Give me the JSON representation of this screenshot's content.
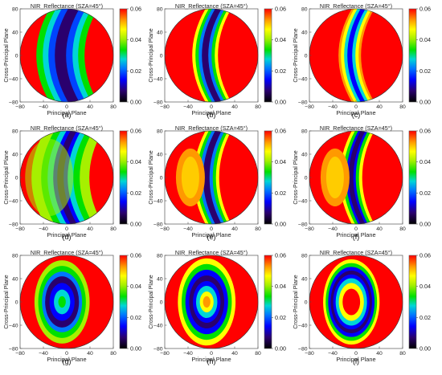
{
  "figure": {
    "panel_title": "NIR_Reflectance (SZA=45°)",
    "xlabel": "Principal Plane",
    "ylabel": "Cross-Principal Plane",
    "x_ticks": [
      "−80",
      "−40",
      "0",
      "40",
      "80"
    ],
    "y_ticks": [
      "80",
      "40",
      "0",
      "−40",
      "−80"
    ],
    "colorbar": {
      "range": [
        0.0,
        0.06
      ],
      "tick_labels": [
        "0.06",
        "0.04",
        "0.02",
        "0.00"
      ]
    }
  },
  "chart_data": [
    {
      "type": "heatmap",
      "panel": "(a)",
      "title": "NIR_Reflectance (SZA=45°)",
      "xlabel": "Principal Plane",
      "ylabel": "Cross-Principal Plane",
      "xlim": [
        -80,
        80
      ],
      "ylim": [
        -80,
        80
      ],
      "colorbar_range": [
        0.0,
        0.06
      ],
      "colorbar_ticks": [
        0.0,
        0.02,
        0.04,
        0.06
      ]
    },
    {
      "type": "heatmap",
      "panel": "(b)",
      "title": "NIR_Reflectance (SZA=45°)",
      "xlabel": "Principal Plane",
      "ylabel": "Cross-Principal Plane",
      "xlim": [
        -80,
        80
      ],
      "ylim": [
        -80,
        80
      ],
      "colorbar_range": [
        0.0,
        0.06
      ],
      "colorbar_ticks": [
        0.0,
        0.02,
        0.04,
        0.06
      ]
    },
    {
      "type": "heatmap",
      "panel": "(c)",
      "title": "NIR_Reflectance (SZA=45°)",
      "xlabel": "Principal Plane",
      "ylabel": "Cross-Principal Plane",
      "xlim": [
        -80,
        80
      ],
      "ylim": [
        -80,
        80
      ],
      "colorbar_range": [
        0.0,
        0.06
      ],
      "colorbar_ticks": [
        0.0,
        0.02,
        0.04,
        0.06
      ]
    },
    {
      "type": "heatmap",
      "panel": "(d)",
      "title": "NIR_Reflectance (SZA=45°)",
      "xlabel": "Principal Plane",
      "ylabel": "Cross-Principal Plane",
      "xlim": [
        -80,
        80
      ],
      "ylim": [
        -80,
        80
      ],
      "colorbar_range": [
        0.0,
        0.06
      ],
      "colorbar_ticks": [
        0.0,
        0.02,
        0.04,
        0.06
      ]
    },
    {
      "type": "heatmap",
      "panel": "(e)",
      "title": "NIR_Reflectance (SZA=45°)",
      "xlabel": "Principal Plane",
      "ylabel": "Cross-Principal Plane",
      "xlim": [
        -80,
        80
      ],
      "ylim": [
        -80,
        80
      ],
      "colorbar_range": [
        0.0,
        0.06
      ],
      "colorbar_ticks": [
        0.0,
        0.02,
        0.04,
        0.06
      ]
    },
    {
      "type": "heatmap",
      "panel": "(f)",
      "title": "NIR_Reflectance (SZA=45°)",
      "xlabel": "Principal Plane",
      "ylabel": "Cross-Principal Plane",
      "xlim": [
        -80,
        80
      ],
      "ylim": [
        -80,
        80
      ],
      "colorbar_range": [
        0.0,
        0.06
      ],
      "colorbar_ticks": [
        0.0,
        0.02,
        0.04,
        0.06
      ]
    },
    {
      "type": "heatmap",
      "panel": "(g)",
      "title": "NIR_Reflectance (SZA=45°)",
      "xlabel": "Principal Plane",
      "ylabel": "Cross-Principal Plane",
      "xlim": [
        -80,
        80
      ],
      "ylim": [
        -80,
        80
      ],
      "colorbar_range": [
        0.0,
        0.06
      ],
      "colorbar_ticks": [
        0.0,
        0.02,
        0.04,
        0.06
      ]
    },
    {
      "type": "heatmap",
      "panel": "(h)",
      "title": "NIR_Reflectance (SZA=45°)",
      "xlabel": "Principal Plane",
      "ylabel": "Cross-Principal Plane",
      "xlim": [
        -80,
        80
      ],
      "ylim": [
        -80,
        80
      ],
      "colorbar_range": [
        0.0,
        0.06
      ],
      "colorbar_ticks": [
        0.0,
        0.02,
        0.04,
        0.06
      ]
    },
    {
      "type": "heatmap",
      "panel": "(i)",
      "title": "NIR_Reflectance (SZA=45°)",
      "xlabel": "Principal Plane",
      "ylabel": "Cross-Principal Plane",
      "xlim": [
        -80,
        80
      ],
      "ylim": [
        -80,
        80
      ],
      "colorbar_range": [
        0.0,
        0.06
      ],
      "colorbar_ticks": [
        0.0,
        0.02,
        0.04,
        0.06
      ]
    }
  ]
}
